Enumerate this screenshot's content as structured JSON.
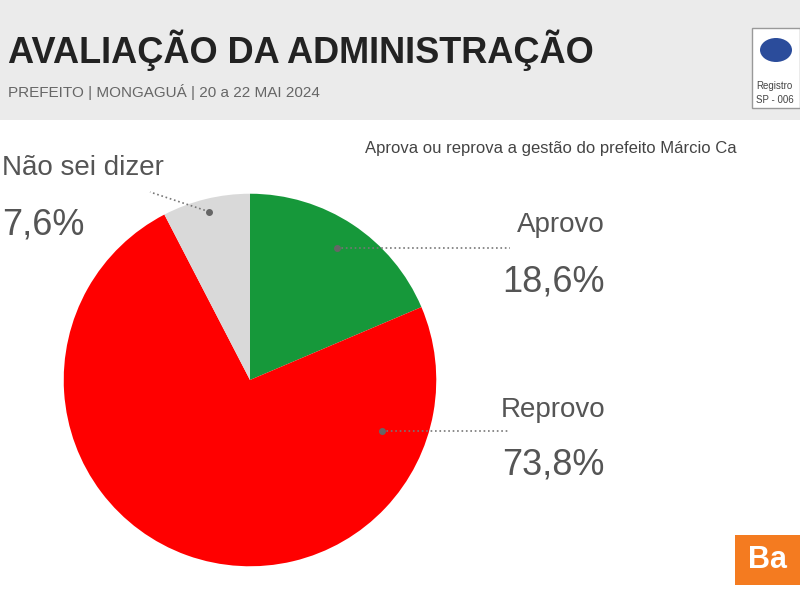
{
  "chart_data": {
    "type": "pie",
    "title": "AVALIAÇÃO DA ADMINISTRAÇÃO",
    "subtitle": "PREFEITO | MONGAGUÁ | 20 a 22 MAI 2024",
    "annotations": [
      "Aprova ou reprova a gestão do prefeito Márcio Ca",
      "Registro",
      "SP - 006",
      "Ba"
    ],
    "categories": [
      "Aprovo",
      "Reprovo",
      "Não sei dizer"
    ],
    "values": [
      18.6,
      73.8,
      7.6
    ],
    "value_labels": [
      "18,6%",
      "73,8%",
      "7,6%"
    ],
    "colors": [
      "#16983a",
      "#ff0000",
      "#d9d9d9"
    ],
    "data_labels": true
  }
}
